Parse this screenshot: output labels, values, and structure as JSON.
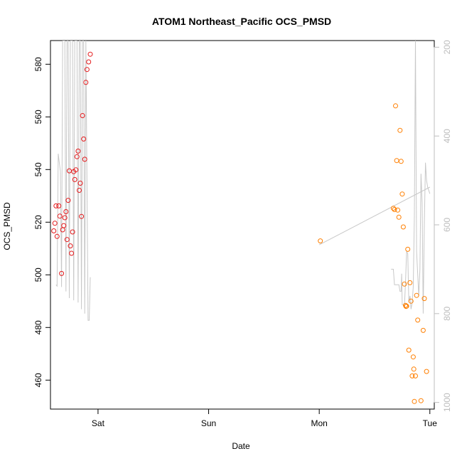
{
  "chart_data": {
    "type": "scatter",
    "title": "ATOM1 Northeast_Pacific OCS_PMSD",
    "xlabel": "Date",
    "ylabel": "OCS_PMSD",
    "x_ticks": [
      {
        "label": "Sat",
        "x": 1
      },
      {
        "label": "Sun",
        "x": 2
      },
      {
        "label": "Mon",
        "x": 3
      },
      {
        "label": "Tue",
        "x": 4
      }
    ],
    "xlim": [
      0.57,
      4.04
    ],
    "ylim": [
      449,
      589
    ],
    "y_ticks": [
      460,
      480,
      500,
      520,
      540,
      560,
      580
    ],
    "y2_ticks": [
      200,
      400,
      600,
      800,
      1000
    ],
    "y2lim": [
      1015,
      185
    ],
    "y2_reversed": true,
    "grid": false,
    "colors": {
      "series_1": "#e41a1c",
      "series_2": "#ff7f00",
      "line": "#c8c8c8"
    },
    "series": [
      {
        "color": "#e41a1c",
        "marker": "circle-open",
        "points": [
          [
            0.6,
            516.7
          ],
          [
            0.61,
            519.6
          ],
          [
            0.62,
            526.2
          ],
          [
            0.63,
            514.6
          ],
          [
            0.645,
            526.2
          ],
          [
            0.655,
            522.3
          ],
          [
            0.67,
            500.5
          ],
          [
            0.68,
            517.1
          ],
          [
            0.69,
            518.7
          ],
          [
            0.7,
            521.7
          ],
          [
            0.71,
            524.0
          ],
          [
            0.72,
            513.4
          ],
          [
            0.73,
            528.3
          ],
          [
            0.74,
            539.5
          ],
          [
            0.75,
            511.0
          ],
          [
            0.76,
            508.2
          ],
          [
            0.77,
            516.3
          ],
          [
            0.78,
            539.2
          ],
          [
            0.79,
            536.2
          ],
          [
            0.8,
            539.9
          ],
          [
            0.81,
            544.9
          ],
          [
            0.82,
            547.0
          ],
          [
            0.83,
            532.1
          ],
          [
            0.84,
            534.8
          ],
          [
            0.85,
            522.2
          ],
          [
            0.86,
            560.5
          ],
          [
            0.87,
            551.6
          ],
          [
            0.88,
            543.9
          ],
          [
            0.89,
            573.1
          ],
          [
            0.9,
            578.0
          ],
          [
            0.915,
            580.9
          ],
          [
            0.93,
            583.8
          ]
        ]
      },
      {
        "color": "#ff7f00",
        "marker": "circle-open",
        "points": [
          [
            3.01,
            512.9
          ],
          [
            3.67,
            525.3
          ],
          [
            3.68,
            524.8
          ],
          [
            3.69,
            564.2
          ],
          [
            3.7,
            543.4
          ],
          [
            3.71,
            524.6
          ],
          [
            3.72,
            521.9
          ],
          [
            3.73,
            554.9
          ],
          [
            3.74,
            543.1
          ],
          [
            3.75,
            530.7
          ],
          [
            3.76,
            518.2
          ],
          [
            3.77,
            496.5
          ],
          [
            3.78,
            488.4
          ],
          [
            3.785,
            488.0
          ],
          [
            3.79,
            488.1
          ],
          [
            3.8,
            509.7
          ],
          [
            3.81,
            471.4
          ],
          [
            3.82,
            497.0
          ],
          [
            3.83,
            490.0
          ],
          [
            3.84,
            461.6
          ],
          [
            3.85,
            468.8
          ],
          [
            3.855,
            464.2
          ],
          [
            3.86,
            451.9
          ],
          [
            3.87,
            461.6
          ],
          [
            3.88,
            492.2
          ],
          [
            3.89,
            482.8
          ],
          [
            3.92,
            452.2
          ],
          [
            3.94,
            478.9
          ],
          [
            3.95,
            491.0
          ],
          [
            3.97,
            463.3
          ]
        ]
      }
    ],
    "line_series": {
      "color": "#c8c8c8",
      "y_axis": "right",
      "points": [
        [
          0.62,
          735
        ],
        [
          0.63,
          738
        ],
        [
          0.64,
          440
        ],
        [
          0.66,
          480
        ],
        [
          0.67,
          740
        ],
        [
          0.68,
          185
        ],
        [
          0.7,
          185
        ],
        [
          0.71,
          750
        ],
        [
          0.72,
          185
        ],
        [
          0.73,
          185
        ],
        [
          0.74,
          765
        ],
        [
          0.75,
          185
        ],
        [
          0.77,
          185
        ],
        [
          0.78,
          770
        ],
        [
          0.79,
          185
        ],
        [
          0.81,
          185
        ],
        [
          0.82,
          775
        ],
        [
          0.83,
          185
        ],
        [
          0.84,
          185
        ],
        [
          0.85,
          790
        ],
        [
          0.86,
          185
        ],
        [
          0.87,
          185
        ],
        [
          0.88,
          800
        ],
        [
          0.89,
          185
        ],
        [
          0.91,
          815
        ],
        [
          0.92,
          815
        ],
        [
          0.93,
          718
        ],
        [
          3.65,
          700
        ],
        [
          3.67,
          700
        ],
        [
          3.68,
          735
        ],
        [
          3.72,
          735
        ],
        [
          3.73,
          750
        ],
        [
          3.74,
          750
        ],
        [
          3.745,
          710
        ],
        [
          3.75,
          780
        ],
        [
          3.76,
          780
        ],
        [
          3.77,
          785
        ],
        [
          3.78,
          730
        ],
        [
          3.79,
          660
        ],
        [
          3.8,
          665
        ],
        [
          3.81,
          775
        ],
        [
          3.82,
          760
        ],
        [
          3.83,
          790
        ],
        [
          3.84,
          775
        ],
        [
          3.85,
          740
        ],
        [
          3.86,
          580
        ],
        [
          3.87,
          185
        ],
        [
          3.88,
          660
        ],
        [
          3.9,
          760
        ],
        [
          3.91,
          700
        ],
        [
          3.92,
          485
        ],
        [
          3.93,
          550
        ],
        [
          3.94,
          800
        ],
        [
          3.95,
          600
        ],
        [
          3.96,
          460
        ],
        [
          3.97,
          500
        ],
        [
          3.98,
          515
        ],
        [
          4.0,
          530
        ],
        [
          3.0,
          645
        ],
        [
          4.0,
          515
        ]
      ],
      "segments": [
        {
          "from": 0,
          "to": 27
        },
        {
          "from": 27,
          "to": 58
        },
        {
          "from": 58,
          "to": 60
        }
      ]
    }
  }
}
